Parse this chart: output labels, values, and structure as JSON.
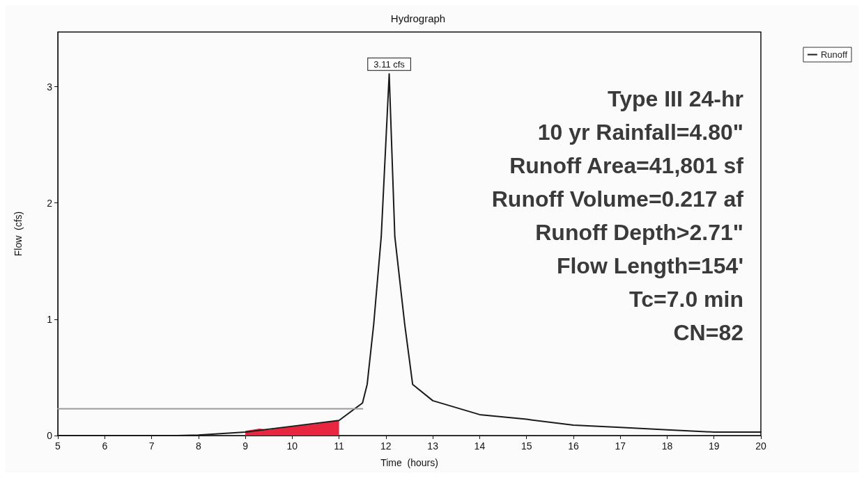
{
  "chart_data": {
    "type": "line",
    "title": "Hydrograph",
    "xlabel": "Time  (hours)",
    "ylabel": "Flow  (cfs)",
    "xlim": [
      5,
      20
    ],
    "xticks": [
      5,
      6,
      7,
      8,
      9,
      10,
      11,
      12,
      13,
      14,
      15,
      16,
      17,
      18,
      19,
      20
    ],
    "ylim": [
      0,
      3.47
    ],
    "yticks": [
      0,
      1,
      2,
      3
    ],
    "grid": false,
    "legend": "top right",
    "marker": "none",
    "line_style": "solid",
    "series": [
      {
        "name": "Runoff",
        "color": "#1a1a1a",
        "x": [
          5,
          7.5,
          8,
          9,
          10,
          11,
          11.5,
          11.6,
          11.74,
          11.9,
          12.07,
          12.19,
          12.4,
          12.57,
          13,
          14,
          15,
          16,
          17,
          18,
          19,
          20
        ],
        "values": [
          0,
          0,
          0.005,
          0.03,
          0.08,
          0.13,
          0.28,
          0.44,
          0.96,
          1.71,
          3.11,
          1.71,
          0.96,
          0.44,
          0.3,
          0.18,
          0.14,
          0.09,
          0.07,
          0.05,
          0.03,
          0.03
        ]
      },
      {
        "type": "area",
        "color": "#e8263f",
        "x": [
          9,
          9.3,
          9.5,
          10,
          10.5,
          11
        ],
        "values": [
          0.04,
          0.06,
          0.05,
          0.08,
          0.1,
          0.13
        ]
      },
      {
        "color": "#9a9a9a",
        "x": [
          5,
          11.5
        ],
        "values": [
          0.23,
          0.23
        ]
      }
    ],
    "annotations": [
      {
        "text": "3.11 cfs",
        "x": 12.07,
        "y": 3.11
      },
      "Type III 24-hr",
      "10 yr Rainfall=4.80\"",
      "Runoff Area=41,801 sf",
      "Runoff Volume=0.217 af",
      "Runoff Depth>2.71\"",
      "Flow Length=154'",
      "Tc=7.0 min",
      "CN=82"
    ]
  }
}
